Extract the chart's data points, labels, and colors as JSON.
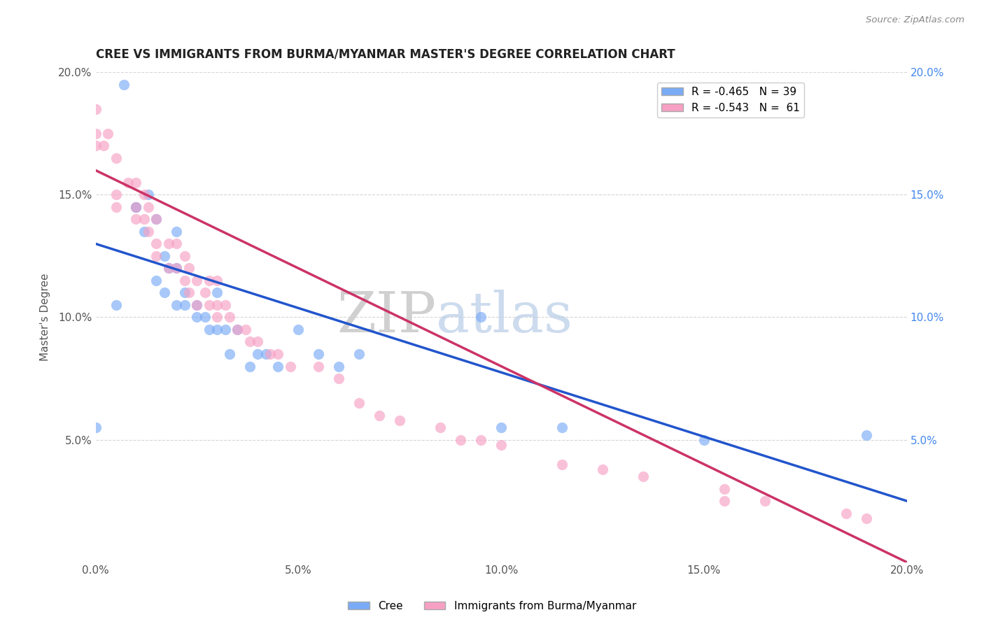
{
  "title": "CREE VS IMMIGRANTS FROM BURMA/MYANMAR MASTER'S DEGREE CORRELATION CHART",
  "source_text": "Source: ZipAtlas.com",
  "xlabel": "",
  "ylabel": "Master's Degree",
  "xlim": [
    0.0,
    0.2
  ],
  "ylim": [
    0.0,
    0.2
  ],
  "xtick_labels": [
    "0.0%",
    "5.0%",
    "10.0%",
    "15.0%",
    "20.0%"
  ],
  "xtick_vals": [
    0.0,
    0.05,
    0.1,
    0.15,
    0.2
  ],
  "ytick_labels": [
    "5.0%",
    "10.0%",
    "15.0%",
    "20.0%"
  ],
  "ytick_vals": [
    0.05,
    0.1,
    0.15,
    0.2
  ],
  "right_ytick_labels": [
    "5.0%",
    "10.0%",
    "15.0%",
    "20.0%"
  ],
  "right_ytick_vals": [
    0.05,
    0.1,
    0.15,
    0.2
  ],
  "legend_label1": "R = -0.465   N = 39",
  "legend_label2": "R = -0.543   N =  61",
  "series1_color": "#7aabf7",
  "series2_color": "#f7a0c4",
  "trendline1_color": "#2255cc",
  "trendline2_color": "#cc3366",
  "watermark_zip": "ZIP",
  "watermark_atlas": "atlas",
  "trendline1_x0": 0.0,
  "trendline1_y0": 0.13,
  "trendline1_x1": 0.2,
  "trendline1_y1": 0.025,
  "trendline2_x0": 0.0,
  "trendline2_y0": 0.16,
  "trendline2_x1": 0.2,
  "trendline2_y1": 0.0,
  "cree_x": [
    0.0,
    0.005,
    0.007,
    0.01,
    0.01,
    0.012,
    0.013,
    0.015,
    0.015,
    0.017,
    0.017,
    0.018,
    0.02,
    0.02,
    0.02,
    0.022,
    0.022,
    0.025,
    0.025,
    0.027,
    0.028,
    0.03,
    0.03,
    0.032,
    0.033,
    0.035,
    0.038,
    0.04,
    0.042,
    0.045,
    0.05,
    0.055,
    0.06,
    0.065,
    0.095,
    0.1,
    0.115,
    0.15,
    0.19
  ],
  "cree_y": [
    0.055,
    0.105,
    0.195,
    0.145,
    0.145,
    0.135,
    0.15,
    0.14,
    0.115,
    0.125,
    0.11,
    0.12,
    0.135,
    0.12,
    0.105,
    0.11,
    0.105,
    0.105,
    0.1,
    0.1,
    0.095,
    0.11,
    0.095,
    0.095,
    0.085,
    0.095,
    0.08,
    0.085,
    0.085,
    0.08,
    0.095,
    0.085,
    0.08,
    0.085,
    0.1,
    0.055,
    0.055,
    0.05,
    0.052
  ],
  "burma_x": [
    0.0,
    0.0,
    0.0,
    0.002,
    0.003,
    0.005,
    0.005,
    0.005,
    0.008,
    0.01,
    0.01,
    0.01,
    0.012,
    0.012,
    0.013,
    0.013,
    0.015,
    0.015,
    0.015,
    0.018,
    0.018,
    0.02,
    0.02,
    0.022,
    0.022,
    0.023,
    0.023,
    0.025,
    0.025,
    0.027,
    0.028,
    0.028,
    0.03,
    0.03,
    0.03,
    0.032,
    0.033,
    0.035,
    0.037,
    0.038,
    0.04,
    0.043,
    0.045,
    0.048,
    0.055,
    0.06,
    0.065,
    0.07,
    0.075,
    0.085,
    0.09,
    0.095,
    0.1,
    0.115,
    0.125,
    0.135,
    0.155,
    0.155,
    0.165,
    0.185,
    0.19
  ],
  "burma_y": [
    0.185,
    0.175,
    0.17,
    0.17,
    0.175,
    0.165,
    0.15,
    0.145,
    0.155,
    0.155,
    0.145,
    0.14,
    0.15,
    0.14,
    0.145,
    0.135,
    0.14,
    0.13,
    0.125,
    0.13,
    0.12,
    0.13,
    0.12,
    0.125,
    0.115,
    0.12,
    0.11,
    0.115,
    0.105,
    0.11,
    0.115,
    0.105,
    0.115,
    0.105,
    0.1,
    0.105,
    0.1,
    0.095,
    0.095,
    0.09,
    0.09,
    0.085,
    0.085,
    0.08,
    0.08,
    0.075,
    0.065,
    0.06,
    0.058,
    0.055,
    0.05,
    0.05,
    0.048,
    0.04,
    0.038,
    0.035,
    0.03,
    0.025,
    0.025,
    0.02,
    0.018
  ]
}
